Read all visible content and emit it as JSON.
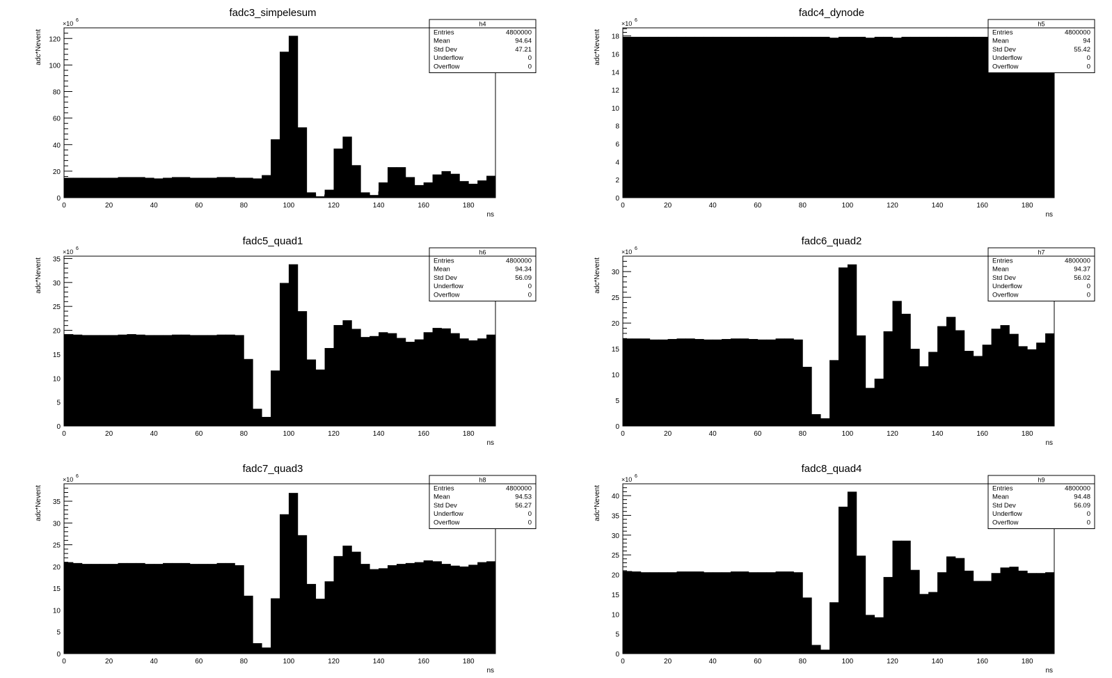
{
  "chart_data": [
    {
      "type": "bar",
      "title": "fadc3_simpelesum",
      "xlabel": "ns",
      "ylabel": "adc*Nevent",
      "y_multiplier": "×10",
      "y_multiplier_exp": "6",
      "xlim": [
        0,
        192
      ],
      "ylim": [
        0,
        128
      ],
      "y_ticks": [
        0,
        20,
        40,
        60,
        80,
        100,
        120
      ],
      "x_ticks": [
        0,
        20,
        40,
        60,
        80,
        100,
        120,
        140,
        160,
        180
      ],
      "bin_width": 4,
      "values": [
        15,
        15,
        15,
        15,
        15,
        15,
        15.5,
        15.5,
        15.5,
        15,
        14.5,
        15,
        15.5,
        15.5,
        15,
        15,
        15,
        15.5,
        15.5,
        15,
        15,
        14.5,
        17,
        44,
        110,
        122,
        53,
        4,
        1,
        6,
        37,
        46,
        24.5,
        4,
        2,
        11.5,
        23,
        23,
        15.5,
        9.5,
        11.5,
        17.5,
        20,
        18,
        12.5,
        10.5,
        13,
        16.5
      ],
      "stats": {
        "name": "h4",
        "rows": [
          {
            "label": "Entries",
            "value": "4800000"
          },
          {
            "label": "Mean",
            "value": "94.64"
          },
          {
            "label": "Std Dev",
            "value": "47.21"
          },
          {
            "label": "Underflow",
            "value": "0"
          },
          {
            "label": "Overflow",
            "value": "0"
          }
        ]
      }
    },
    {
      "type": "bar",
      "title": "fadc4_dynode",
      "xlabel": "ns",
      "ylabel": "adc*Nevent",
      "y_multiplier": "×10",
      "y_multiplier_exp": "6",
      "xlim": [
        0,
        192
      ],
      "ylim": [
        0,
        18.9
      ],
      "y_ticks": [
        0,
        2,
        4,
        6,
        8,
        10,
        12,
        14,
        16,
        18
      ],
      "x_ticks": [
        0,
        20,
        40,
        60,
        80,
        100,
        120,
        140,
        160,
        180
      ],
      "bin_width": 4,
      "values": [
        17.9,
        17.9,
        17.9,
        17.9,
        17.9,
        17.9,
        17.9,
        17.9,
        17.9,
        17.9,
        17.9,
        17.9,
        17.9,
        17.9,
        17.9,
        17.9,
        17.9,
        17.9,
        17.9,
        17.9,
        17.9,
        17.9,
        17.9,
        17.8,
        17.9,
        17.9,
        17.9,
        17.8,
        17.9,
        17.9,
        17.8,
        17.9,
        17.9,
        17.9,
        17.9,
        17.9,
        17.9,
        17.9,
        17.9,
        17.9,
        17.9,
        17.9,
        17.9,
        17.9,
        17.9,
        17.9,
        17.9,
        17.9
      ],
      "stats": {
        "name": "h5",
        "rows": [
          {
            "label": "Entries",
            "value": "4800000"
          },
          {
            "label": "Mean",
            "value": "94"
          },
          {
            "label": "Std Dev",
            "value": "55.42"
          },
          {
            "label": "Underflow",
            "value": "0"
          },
          {
            "label": "Overflow",
            "value": "0"
          }
        ]
      }
    },
    {
      "type": "bar",
      "title": "fadc5_quad1",
      "xlabel": "ns",
      "ylabel": "adc*Nevent",
      "y_multiplier": "×10",
      "y_multiplier_exp": "6",
      "xlim": [
        0,
        192
      ],
      "ylim": [
        0,
        35.5
      ],
      "y_ticks": [
        0,
        5,
        10,
        15,
        20,
        25,
        30,
        35
      ],
      "x_ticks": [
        0,
        20,
        40,
        60,
        80,
        100,
        120,
        140,
        160,
        180
      ],
      "bin_width": 4,
      "values": [
        19.2,
        19.1,
        19,
        19,
        19,
        19,
        19.1,
        19.2,
        19.1,
        19,
        19,
        19,
        19.1,
        19.1,
        19,
        19,
        19,
        19.1,
        19.1,
        19,
        14,
        3.6,
        1.9,
        11.6,
        29.9,
        33.8,
        24,
        13.9,
        11.8,
        16.3,
        21.1,
        22.1,
        20.3,
        18.6,
        18.8,
        19.6,
        19.4,
        18.4,
        17.6,
        18.1,
        19.6,
        20.5,
        20.4,
        19.4,
        18.3,
        17.9,
        18.3,
        19.1
      ],
      "stats": {
        "name": "h6",
        "rows": [
          {
            "label": "Entries",
            "value": "4800000"
          },
          {
            "label": "Mean",
            "value": "94.34"
          },
          {
            "label": "Std Dev",
            "value": "56.09"
          },
          {
            "label": "Underflow",
            "value": "0"
          },
          {
            "label": "Overflow",
            "value": "0"
          }
        ]
      }
    },
    {
      "type": "bar",
      "title": "fadc6_quad2",
      "xlabel": "ns",
      "ylabel": "adc*Nevent",
      "y_multiplier": "×10",
      "y_multiplier_exp": "6",
      "xlim": [
        0,
        192
      ],
      "ylim": [
        0,
        33
      ],
      "y_ticks": [
        0,
        5,
        10,
        15,
        20,
        25,
        30
      ],
      "x_ticks": [
        0,
        20,
        40,
        60,
        80,
        100,
        120,
        140,
        160,
        180
      ],
      "bin_width": 4,
      "values": [
        17,
        17,
        17,
        16.8,
        16.8,
        16.9,
        17,
        17,
        16.9,
        16.8,
        16.8,
        16.9,
        17,
        17,
        16.9,
        16.8,
        16.8,
        17,
        17,
        16.8,
        11.5,
        2.3,
        1.5,
        12.8,
        30.8,
        31.4,
        17.6,
        7.4,
        9.2,
        18.4,
        24.3,
        21.8,
        15,
        11.6,
        14.4,
        19.4,
        21.2,
        18.6,
        14.6,
        13.6,
        15.8,
        18.9,
        19.6,
        17.9,
        15.5,
        14.9,
        16.2,
        18
      ],
      "stats": {
        "name": "h7",
        "rows": [
          {
            "label": "Entries",
            "value": "4800000"
          },
          {
            "label": "Mean",
            "value": "94.37"
          },
          {
            "label": "Std Dev",
            "value": "56.02"
          },
          {
            "label": "Underflow",
            "value": "0"
          },
          {
            "label": "Overflow",
            "value": "0"
          }
        ]
      }
    },
    {
      "type": "bar",
      "title": "fadc7_quad3",
      "xlabel": "ns",
      "ylabel": "adc*Nevent",
      "y_multiplier": "×10",
      "y_multiplier_exp": "6",
      "xlim": [
        0,
        192
      ],
      "ylim": [
        0,
        39
      ],
      "y_ticks": [
        0,
        5,
        10,
        15,
        20,
        25,
        30,
        35
      ],
      "x_ticks": [
        0,
        20,
        40,
        60,
        80,
        100,
        120,
        140,
        160,
        180
      ],
      "bin_width": 4,
      "values": [
        21,
        20.8,
        20.6,
        20.6,
        20.6,
        20.6,
        20.8,
        20.8,
        20.8,
        20.6,
        20.6,
        20.8,
        20.8,
        20.8,
        20.6,
        20.6,
        20.6,
        20.8,
        20.8,
        20.3,
        13.3,
        2.4,
        1.4,
        12.7,
        32,
        36.9,
        27.2,
        16,
        12.6,
        16.6,
        22.4,
        24.8,
        23.4,
        20.6,
        19.4,
        19.6,
        20.3,
        20.6,
        20.8,
        21,
        21.4,
        21.2,
        20.6,
        20.2,
        20,
        20.4,
        21,
        21.2
      ],
      "stats": {
        "name": "h8",
        "rows": [
          {
            "label": "Entries",
            "value": "4800000"
          },
          {
            "label": "Mean",
            "value": "94.53"
          },
          {
            "label": "Std Dev",
            "value": "56.27"
          },
          {
            "label": "Underflow",
            "value": "0"
          },
          {
            "label": "Overflow",
            "value": "0"
          }
        ]
      }
    },
    {
      "type": "bar",
      "title": "fadc8_quad4",
      "xlabel": "ns",
      "ylabel": "adc*Nevent",
      "y_multiplier": "×10",
      "y_multiplier_exp": "6",
      "xlim": [
        0,
        192
      ],
      "ylim": [
        0,
        43
      ],
      "y_ticks": [
        0,
        5,
        10,
        15,
        20,
        25,
        30,
        35,
        40
      ],
      "x_ticks": [
        0,
        20,
        40,
        60,
        80,
        100,
        120,
        140,
        160,
        180
      ],
      "bin_width": 4,
      "values": [
        20.9,
        20.8,
        20.6,
        20.6,
        20.6,
        20.6,
        20.8,
        20.8,
        20.8,
        20.6,
        20.6,
        20.6,
        20.8,
        20.8,
        20.6,
        20.6,
        20.6,
        20.8,
        20.8,
        20.6,
        14.2,
        2.2,
        1,
        13,
        37.2,
        41,
        24.8,
        9.8,
        9.2,
        19.4,
        28.6,
        28.6,
        21.2,
        15.1,
        15.6,
        20.6,
        24.6,
        24.2,
        21,
        18.4,
        18.4,
        20.4,
        21.8,
        22,
        21,
        20.4,
        20.4,
        20.6
      ],
      "stats": {
        "name": "h9",
        "rows": [
          {
            "label": "Entries",
            "value": "4800000"
          },
          {
            "label": "Mean",
            "value": "94.48"
          },
          {
            "label": "Std Dev",
            "value": "56.09"
          },
          {
            "label": "Underflow",
            "value": "0"
          },
          {
            "label": "Overflow",
            "value": "0"
          }
        ]
      }
    }
  ]
}
